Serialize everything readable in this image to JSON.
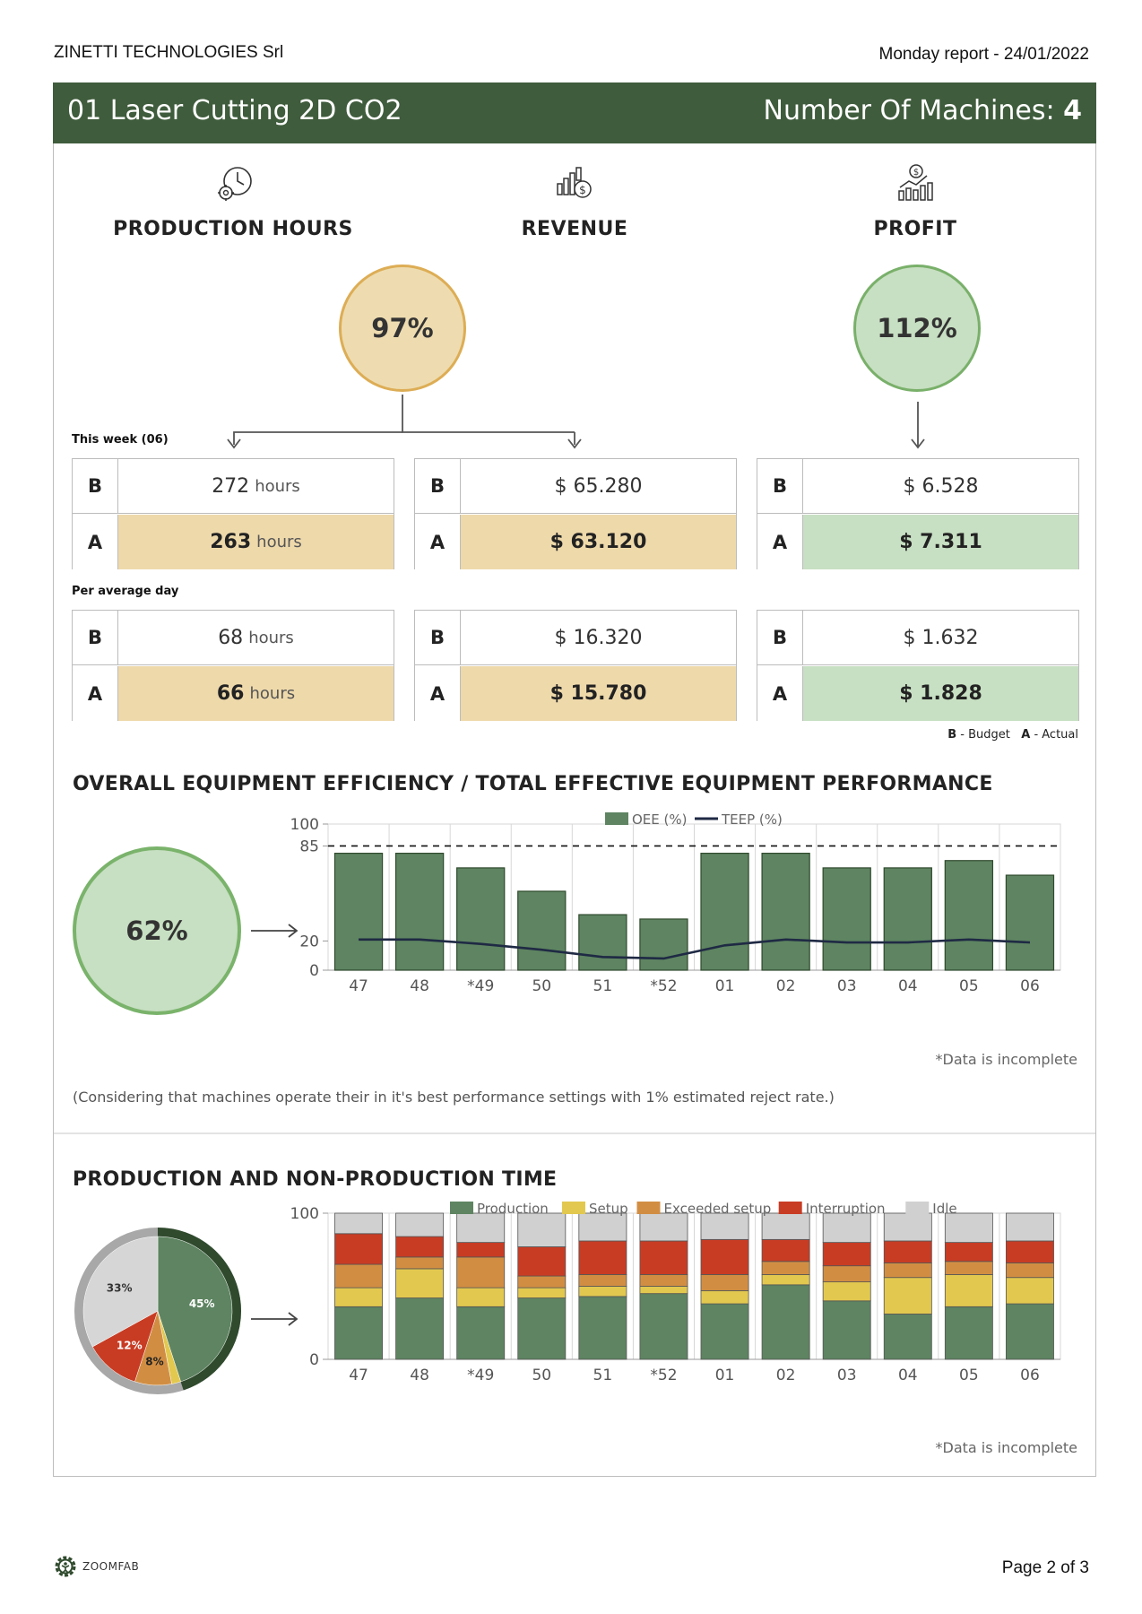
{
  "header": {
    "company": "ZINETTI TECHNOLOGIES Srl",
    "report_date": "Monday report - 24/01/2022"
  },
  "banner": {
    "title": "01 Laser Cutting 2D CO2",
    "machines_label": "Number Of Machines:",
    "machines_count": "4"
  },
  "kpis": {
    "production_hours": {
      "label": "PRODUCTION HOURS",
      "icon": "clock-gear-icon",
      "percent": "97%"
    },
    "revenue": {
      "label": "REVENUE",
      "icon": "revenue-chart-icon"
    },
    "profit": {
      "label": "PROFIT",
      "icon": "profit-chart-icon",
      "percent": "112%"
    }
  },
  "this_week": {
    "label": "This week (06)",
    "hours": {
      "b_key": "B",
      "a_key": "A",
      "budget": "272",
      "actual": "263",
      "unit": "hours"
    },
    "revenue": {
      "b_key": "B",
      "a_key": "A",
      "budget": "$  65.280",
      "actual": "$  63.120"
    },
    "profit": {
      "b_key": "B",
      "a_key": "A",
      "budget": "$  6.528",
      "actual": "$  7.311"
    }
  },
  "per_day": {
    "label": "Per average day",
    "hours": {
      "b_key": "B",
      "a_key": "A",
      "budget": "68",
      "actual": "66",
      "unit": "hours"
    },
    "revenue": {
      "b_key": "B",
      "a_key": "A",
      "budget": "$  16.320",
      "actual": "$  15.780"
    },
    "profit": {
      "b_key": "B",
      "a_key": "A",
      "budget": "$  1.632",
      "actual": "$  1.828"
    }
  },
  "legend_ba": {
    "b": "B",
    "b_text": " - Budget",
    "a": "A",
    "a_text": " - Actual"
  },
  "oee_section": {
    "title": "OVERALL EQUIPMENT EFFICIENCY / TOTAL EFFECTIVE EQUIPMENT PERFORMANCE",
    "overall": "62%",
    "note": "(Considering that machines operate their in it's best performance settings with 1% estimated reject rate.)",
    "incomplete": "*Data is incomplete"
  },
  "production_section": {
    "title": "PRODUCTION AND NON-PRODUCTION TIME",
    "incomplete": "*Data is incomplete"
  },
  "chart_data": [
    {
      "type": "bar",
      "categories": [
        "47",
        "48",
        "*49",
        "50",
        "51",
        "*52",
        "01",
        "02",
        "03",
        "04",
        "05",
        "06"
      ],
      "series": [
        {
          "name": "OEE (%)",
          "type": "bar",
          "color": "#5e8461",
          "values": [
            80,
            80,
            70,
            54,
            38,
            35,
            80,
            80,
            70,
            70,
            75,
            65
          ]
        },
        {
          "name": "TEEP (%)",
          "type": "line",
          "color": "#1f2a44",
          "values": [
            21,
            21,
            18,
            14,
            9,
            8,
            17,
            21,
            19,
            19,
            21,
            19
          ]
        }
      ],
      "yticks": [
        0,
        20,
        85,
        100
      ],
      "reference_line": 85,
      "ylim": [
        0,
        100
      ]
    },
    {
      "type": "bar",
      "stacked": true,
      "categories": [
        "47",
        "48",
        "*49",
        "50",
        "51",
        "*52",
        "01",
        "02",
        "03",
        "04",
        "05",
        "06"
      ],
      "series": [
        {
          "name": "Production",
          "color": "#5e8461",
          "values": [
            36,
            42,
            36,
            42,
            43,
            45,
            38,
            51,
            40,
            31,
            36,
            38
          ]
        },
        {
          "name": "Setup",
          "color": "#e2c84f",
          "values": [
            13,
            20,
            13,
            7,
            7,
            5,
            9,
            7,
            13,
            25,
            22,
            18
          ]
        },
        {
          "name": "Exceeded setup",
          "color": "#d18e43",
          "values": [
            16,
            8,
            21,
            8,
            8,
            8,
            11,
            9,
            11,
            10,
            9,
            10
          ]
        },
        {
          "name": "Interruption",
          "color": "#c83c24",
          "values": [
            21,
            14,
            10,
            20,
            23,
            23,
            24,
            15,
            16,
            15,
            13,
            15
          ]
        },
        {
          "name": "Idle",
          "color": "#d0d0d0",
          "values": [
            14,
            16,
            20,
            23,
            19,
            19,
            18,
            18,
            20,
            19,
            20,
            19
          ]
        }
      ],
      "yticks": [
        0,
        100
      ],
      "ylim": [
        0,
        100
      ]
    },
    {
      "type": "pie",
      "labels": [
        "Production",
        "Setup",
        "Exceeded setup",
        "Interruption",
        "Idle"
      ],
      "values": [
        45,
        2,
        8,
        12,
        33
      ],
      "value_labels": [
        "45%",
        "",
        "8%",
        "12%",
        "33%"
      ],
      "colors": [
        "#5e8461",
        "#e2c84f",
        "#d18e43",
        "#c83c24",
        "#d6d6d6"
      ]
    }
  ],
  "footer": {
    "logo_text": "ZOOMFAB",
    "page": "Page 2 of 3"
  }
}
